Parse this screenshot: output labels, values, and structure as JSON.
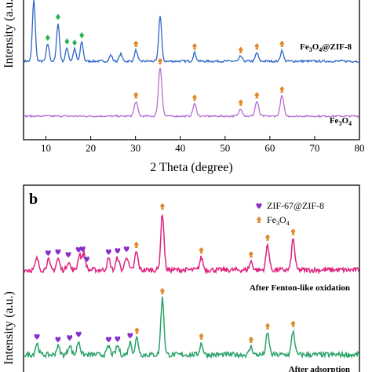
{
  "chart_data": [
    {
      "type": "line",
      "panel": "a",
      "xlabel": "2 Theta (degree)",
      "ylabel": "Intensity (a.u.)",
      "xlim": [
        5,
        80
      ],
      "x_ticks": [
        "10",
        "20",
        "30",
        "40",
        "50",
        "60",
        "70",
        "80"
      ],
      "series": [
        {
          "name": "Fe3O4@ZIF-8",
          "color": "#2b67c6",
          "peaks": [
            {
              "x": 7.3,
              "h": 1.0
            },
            {
              "x": 10.4,
              "h": 0.28
            },
            {
              "x": 12.7,
              "h": 0.62
            },
            {
              "x": 14.7,
              "h": 0.22
            },
            {
              "x": 16.4,
              "h": 0.2
            },
            {
              "x": 18.0,
              "h": 0.32
            },
            {
              "x": 24.5,
              "h": 0.1
            },
            {
              "x": 26.7,
              "h": 0.12
            },
            {
              "x": 30.1,
              "h": 0.18
            },
            {
              "x": 35.5,
              "h": 0.75
            },
            {
              "x": 43.2,
              "h": 0.14
            },
            {
              "x": 53.5,
              "h": 0.08
            },
            {
              "x": 57.1,
              "h": 0.14
            },
            {
              "x": 62.7,
              "h": 0.18
            }
          ]
        },
        {
          "name": "Fe3O4",
          "color": "#b26fd2",
          "peaks": [
            {
              "x": 30.1,
              "h": 0.3
            },
            {
              "x": 35.5,
              "h": 1.0
            },
            {
              "x": 43.2,
              "h": 0.25
            },
            {
              "x": 53.5,
              "h": 0.15
            },
            {
              "x": 57.1,
              "h": 0.3
            },
            {
              "x": 62.7,
              "h": 0.42
            }
          ]
        }
      ],
      "markers": [
        {
          "symbol": "diamond",
          "color": "#2bb24c",
          "series": 0,
          "x": [
            10.4,
            12.7,
            14.7,
            16.4,
            18.0
          ]
        },
        {
          "symbol": "spade",
          "color": "#e08a2c",
          "series": 0,
          "x": [
            30.1,
            43.2,
            53.5,
            57.1,
            62.7
          ]
        },
        {
          "symbol": "spade",
          "color": "#e08a2c",
          "series": 1,
          "x": [
            30.1,
            35.5,
            43.2,
            53.5,
            57.1,
            62.7
          ]
        }
      ],
      "labels": {
        "fe3o4_zif8_main": "Fe",
        "fe3o4_zif8_sub3": "3",
        "fe3o4_zif8_o": "O",
        "fe3o4_zif8_sub4": "4",
        "fe3o4_zif8_tail": "@ZIF-8",
        "fe3o4_main": "Fe",
        "fe3o4_sub3": "3",
        "fe3o4_o": "O",
        "fe3o4_sub4": "4"
      }
    },
    {
      "type": "line",
      "panel": "b",
      "panel_letter": "b",
      "ylabel": "Intensity (a.u.)",
      "xlim": [
        5,
        80
      ],
      "legend": [
        {
          "label": "ZIF-67@ZIF-8",
          "symbol": "heart",
          "color": "#8a2fc9"
        },
        {
          "label_main": "Fe",
          "label_sub": "3",
          "label_o": "O",
          "label_sub2": "4",
          "symbol": "spade",
          "color": "#e08a2c"
        }
      ],
      "legend_position": "top-right",
      "series": [
        {
          "name": "After Fenton-like oxidation",
          "color": "#e0237f",
          "peaks": [
            {
              "x": 8.0,
              "h": 0.2
            },
            {
              "x": 10.5,
              "h": 0.18
            },
            {
              "x": 12.7,
              "h": 0.2
            },
            {
              "x": 15.0,
              "h": 0.15
            },
            {
              "x": 17.5,
              "h": 0.28
            },
            {
              "x": 18.5,
              "h": 0.3
            },
            {
              "x": 24.0,
              "h": 0.2
            },
            {
              "x": 26.0,
              "h": 0.22
            },
            {
              "x": 28.0,
              "h": 0.25
            },
            {
              "x": 30.2,
              "h": 0.32
            },
            {
              "x": 36.0,
              "h": 1.0
            },
            {
              "x": 44.7,
              "h": 0.22
            },
            {
              "x": 55.8,
              "h": 0.15
            },
            {
              "x": 59.5,
              "h": 0.45
            },
            {
              "x": 65.2,
              "h": 0.55
            }
          ]
        },
        {
          "name": "After adsorption",
          "color": "#2aa36a",
          "peaks": [
            {
              "x": 8.0,
              "h": 0.2
            },
            {
              "x": 12.7,
              "h": 0.15
            },
            {
              "x": 15.3,
              "h": 0.18
            },
            {
              "x": 17.3,
              "h": 0.24
            },
            {
              "x": 24.0,
              "h": 0.15
            },
            {
              "x": 26.0,
              "h": 0.16
            },
            {
              "x": 28.8,
              "h": 0.22
            },
            {
              "x": 30.3,
              "h": 0.3
            },
            {
              "x": 36.0,
              "h": 1.0
            },
            {
              "x": 44.7,
              "h": 0.2
            },
            {
              "x": 55.8,
              "h": 0.14
            },
            {
              "x": 59.5,
              "h": 0.38
            },
            {
              "x": 65.2,
              "h": 0.42
            }
          ]
        }
      ],
      "markers": [
        {
          "symbol": "heart",
          "color": "#8a2fc9",
          "series": 0,
          "x": [
            10.5,
            12.7,
            15.0,
            17.3,
            18.2,
            19.1,
            24.0,
            26.0,
            28.0
          ]
        },
        {
          "symbol": "spade",
          "color": "#e08a2c",
          "series": 0,
          "x": [
            30.2,
            36.0,
            44.7,
            55.8,
            59.5,
            65.2
          ]
        },
        {
          "symbol": "heart",
          "color": "#8a2fc9",
          "series": 1,
          "x": [
            8.0,
            12.7,
            15.3,
            17.3,
            24.0,
            26.0,
            28.8
          ]
        },
        {
          "symbol": "spade",
          "color": "#e08a2c",
          "series": 1,
          "x": [
            30.3,
            36.0,
            44.7,
            55.8,
            59.5,
            65.2
          ]
        }
      ],
      "labels": {
        "fenton": "After Fenton-like oxidation",
        "adsorption": "After adsorption"
      }
    }
  ]
}
